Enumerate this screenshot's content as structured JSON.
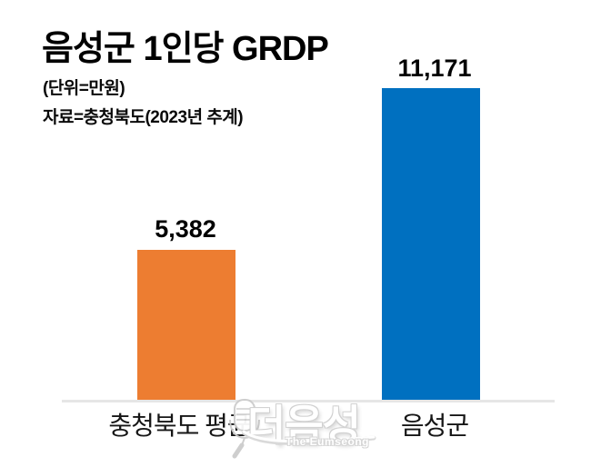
{
  "chart_data": {
    "type": "bar",
    "title": "음성군 1인당 GRDP",
    "unit_note": "(단위=만원)",
    "source_note": "자료=충청북도(2023년 추계)",
    "categories": [
      "충청북도 평균",
      "음성군"
    ],
    "values": [
      5382,
      11171
    ],
    "value_labels": [
      "5,382",
      "11,171"
    ],
    "series_colors": [
      "#ED7D31",
      "#0070C0"
    ],
    "ylim": [
      0,
      11500
    ],
    "grid": false,
    "legend": "none",
    "axis_line_color": "#E6E6E6",
    "text_color": "#000000"
  },
  "watermark": {
    "text": "더음성",
    "subtext": "The Eumseong",
    "icon": "microphone-icon"
  }
}
